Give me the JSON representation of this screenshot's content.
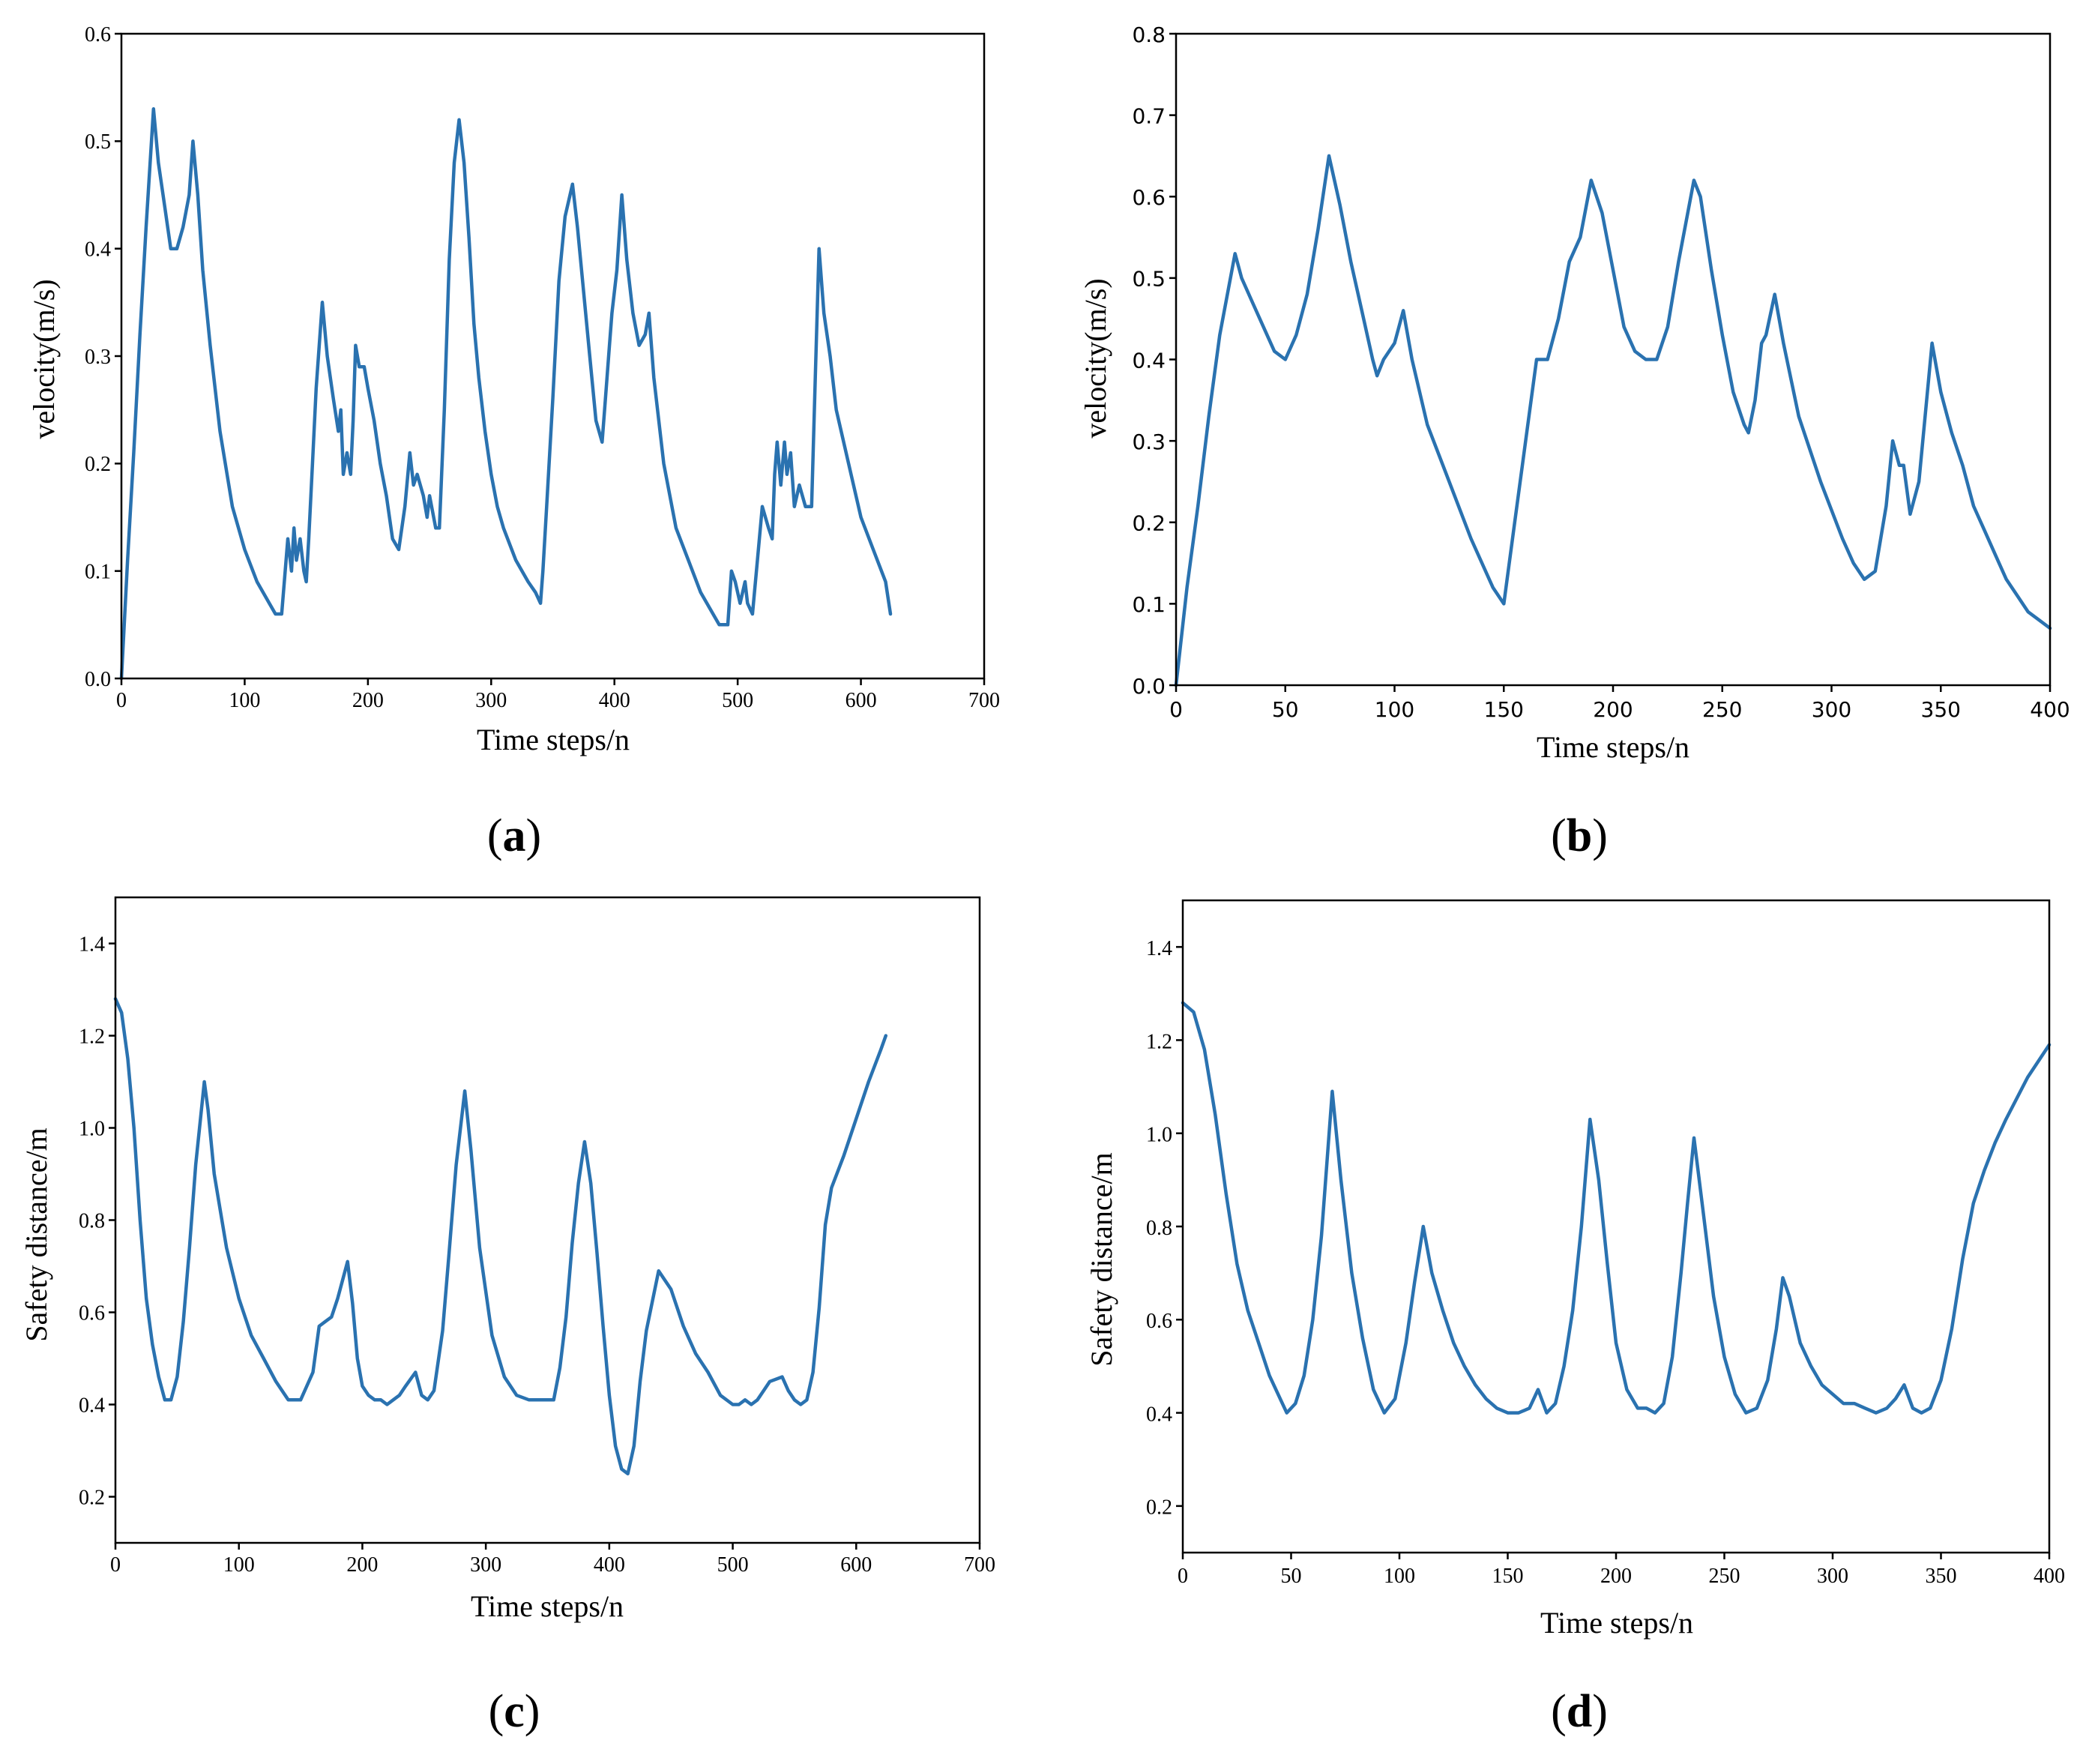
{
  "figure": {
    "series_color": "#2a72b0"
  },
  "chart_data": [
    {
      "id": "a",
      "type": "line",
      "caption_letter": "a",
      "xlabel": "Time steps/n",
      "ylabel": "velocity(m/s)",
      "xlim": [
        0,
        700
      ],
      "ylim": [
        0.0,
        0.6
      ],
      "xticks": [
        0,
        100,
        200,
        300,
        400,
        500,
        600,
        700
      ],
      "yticks": [
        0.0,
        0.1,
        0.2,
        0.3,
        0.4,
        0.5,
        0.6
      ],
      "xtick_labels": [
        "0",
        "100",
        "200",
        "300",
        "400",
        "500",
        "600",
        "700"
      ],
      "ytick_labels": [
        "0.0",
        "0.1",
        "0.2",
        "0.3",
        "0.4",
        "0.5",
        "0.6"
      ],
      "series": [
        {
          "name": "velocity",
          "x": [
            0,
            5,
            10,
            15,
            20,
            26,
            30,
            35,
            40,
            45,
            50,
            55,
            58,
            62,
            66,
            72,
            80,
            90,
            100,
            110,
            120,
            125,
            130,
            135,
            138,
            140,
            142,
            145,
            148,
            150,
            152,
            155,
            158,
            163,
            167,
            172,
            176,
            178,
            180,
            183,
            186,
            188,
            190,
            193,
            197,
            200,
            205,
            210,
            215,
            220,
            225,
            230,
            234,
            237,
            240,
            245,
            248,
            250,
            255,
            258,
            262,
            266,
            270,
            274,
            278,
            282,
            286,
            290,
            295,
            300,
            305,
            310,
            320,
            330,
            336,
            340,
            342,
            345,
            350,
            355,
            360,
            366,
            370,
            375,
            380,
            385,
            390,
            392,
            396,
            398,
            402,
            406,
            410,
            415,
            420,
            425,
            428,
            432,
            440,
            450,
            460,
            470,
            480,
            485,
            490,
            492,
            495,
            498,
            502,
            506,
            508,
            512,
            516,
            520,
            525,
            528,
            530,
            532,
            535,
            538,
            540,
            543,
            546,
            550,
            555,
            560,
            563,
            566,
            570,
            575,
            580,
            590,
            600,
            610,
            620,
            624
          ],
          "y": [
            0.0,
            0.11,
            0.21,
            0.32,
            0.42,
            0.53,
            0.48,
            0.44,
            0.4,
            0.4,
            0.42,
            0.45,
            0.5,
            0.45,
            0.38,
            0.31,
            0.23,
            0.16,
            0.12,
            0.09,
            0.07,
            0.06,
            0.06,
            0.13,
            0.1,
            0.14,
            0.11,
            0.13,
            0.1,
            0.09,
            0.13,
            0.2,
            0.27,
            0.35,
            0.3,
            0.26,
            0.23,
            0.25,
            0.19,
            0.21,
            0.19,
            0.24,
            0.31,
            0.29,
            0.29,
            0.27,
            0.24,
            0.2,
            0.17,
            0.13,
            0.12,
            0.16,
            0.21,
            0.18,
            0.19,
            0.17,
            0.15,
            0.17,
            0.14,
            0.14,
            0.25,
            0.39,
            0.48,
            0.52,
            0.48,
            0.41,
            0.33,
            0.28,
            0.23,
            0.19,
            0.16,
            0.14,
            0.11,
            0.09,
            0.08,
            0.07,
            0.1,
            0.16,
            0.26,
            0.37,
            0.43,
            0.46,
            0.42,
            0.36,
            0.3,
            0.24,
            0.22,
            0.25,
            0.31,
            0.34,
            0.38,
            0.45,
            0.39,
            0.34,
            0.31,
            0.32,
            0.34,
            0.28,
            0.2,
            0.14,
            0.11,
            0.08,
            0.06,
            0.05,
            0.05,
            0.05,
            0.1,
            0.09,
            0.07,
            0.09,
            0.07,
            0.06,
            0.11,
            0.16,
            0.14,
            0.13,
            0.19,
            0.22,
            0.18,
            0.22,
            0.19,
            0.21,
            0.16,
            0.18,
            0.16,
            0.16,
            0.28,
            0.4,
            0.34,
            0.3,
            0.25,
            0.2,
            0.15,
            0.12,
            0.09,
            0.06
          ]
        }
      ]
    },
    {
      "id": "b",
      "type": "line",
      "caption_letter": "b",
      "xlabel": "Time steps/n",
      "ylabel": "velocity(m/s)",
      "xlim": [
        0,
        400
      ],
      "ylim": [
        0.0,
        0.8
      ],
      "xticks": [
        0,
        50,
        100,
        150,
        200,
        250,
        300,
        350,
        400
      ],
      "yticks": [
        0.0,
        0.1,
        0.2,
        0.3,
        0.4,
        0.5,
        0.6,
        0.7,
        0.8
      ],
      "xtick_labels": [
        "0",
        "50",
        "100",
        "150",
        "200",
        "250",
        "300",
        "350",
        "400"
      ],
      "ytick_labels": [
        "0.0",
        "0.1",
        "0.2",
        "0.3",
        "0.4",
        "0.5",
        "0.6",
        "0.7",
        "0.8"
      ],
      "series": [
        {
          "name": "velocity",
          "x": [
            0,
            5,
            10,
            15,
            20,
            27,
            30,
            35,
            40,
            45,
            50,
            55,
            60,
            65,
            70,
            75,
            80,
            85,
            90,
            92,
            95,
            100,
            104,
            108,
            115,
            125,
            135,
            145,
            150,
            155,
            160,
            165,
            170,
            175,
            180,
            185,
            190,
            195,
            200,
            205,
            210,
            215,
            220,
            225,
            230,
            237,
            240,
            245,
            250,
            255,
            260,
            262,
            265,
            268,
            270,
            274,
            278,
            285,
            295,
            305,
            310,
            315,
            320,
            325,
            328,
            331,
            333,
            336,
            340,
            346,
            350,
            355,
            360,
            365,
            370,
            375,
            380,
            385,
            390,
            395,
            400
          ],
          "y": [
            0.0,
            0.12,
            0.22,
            0.33,
            0.43,
            0.53,
            0.5,
            0.47,
            0.44,
            0.41,
            0.4,
            0.43,
            0.48,
            0.56,
            0.65,
            0.59,
            0.52,
            0.46,
            0.4,
            0.38,
            0.4,
            0.42,
            0.46,
            0.4,
            0.32,
            0.25,
            0.18,
            0.12,
            0.1,
            0.2,
            0.3,
            0.4,
            0.4,
            0.45,
            0.52,
            0.55,
            0.62,
            0.58,
            0.51,
            0.44,
            0.41,
            0.4,
            0.4,
            0.44,
            0.52,
            0.62,
            0.6,
            0.51,
            0.43,
            0.36,
            0.32,
            0.31,
            0.35,
            0.42,
            0.43,
            0.48,
            0.42,
            0.33,
            0.25,
            0.18,
            0.15,
            0.13,
            0.14,
            0.22,
            0.3,
            0.27,
            0.27,
            0.21,
            0.25,
            0.42,
            0.36,
            0.31,
            0.27,
            0.22,
            0.19,
            0.16,
            0.13,
            0.11,
            0.09,
            0.08,
            0.07
          ]
        }
      ]
    },
    {
      "id": "c",
      "type": "line",
      "caption_letter": "c",
      "xlabel": "Time steps/n",
      "ylabel": "Safety distance/m",
      "xlim": [
        0,
        700
      ],
      "ylim": [
        0.1,
        1.5
      ],
      "xticks": [
        0,
        100,
        200,
        300,
        400,
        500,
        600,
        700
      ],
      "yticks": [
        0.2,
        0.4,
        0.6,
        0.8,
        1.0,
        1.2,
        1.4
      ],
      "xtick_labels": [
        "0",
        "100",
        "200",
        "300",
        "400",
        "500",
        "600",
        "700"
      ],
      "ytick_labels": [
        "0.2",
        "0.4",
        "0.6",
        "0.8",
        "1.0",
        "1.2",
        "1.4"
      ],
      "series": [
        {
          "name": "safety distance",
          "x": [
            0,
            5,
            10,
            15,
            20,
            25,
            30,
            35,
            40,
            45,
            50,
            55,
            60,
            65,
            72,
            75,
            80,
            90,
            100,
            110,
            120,
            130,
            140,
            150,
            160,
            165,
            170,
            175,
            180,
            188,
            192,
            196,
            200,
            205,
            210,
            215,
            220,
            225,
            230,
            235,
            243,
            248,
            253,
            258,
            265,
            270,
            276,
            283,
            288,
            295,
            305,
            315,
            325,
            335,
            345,
            350,
            355,
            360,
            365,
            370,
            375,
            380,
            385,
            390,
            395,
            400,
            405,
            410,
            415,
            420,
            425,
            430,
            440,
            450,
            460,
            470,
            480,
            490,
            500,
            505,
            510,
            515,
            520,
            525,
            530,
            540,
            545,
            550,
            555,
            560,
            565,
            570,
            575,
            580,
            590,
            600,
            610,
            620,
            624
          ],
          "y": [
            1.28,
            1.25,
            1.15,
            1.0,
            0.8,
            0.63,
            0.53,
            0.46,
            0.41,
            0.41,
            0.46,
            0.58,
            0.74,
            0.92,
            1.1,
            1.04,
            0.9,
            0.74,
            0.63,
            0.55,
            0.5,
            0.45,
            0.41,
            0.41,
            0.47,
            0.57,
            0.58,
            0.59,
            0.63,
            0.71,
            0.62,
            0.5,
            0.44,
            0.42,
            0.41,
            0.41,
            0.4,
            0.41,
            0.42,
            0.44,
            0.47,
            0.42,
            0.41,
            0.43,
            0.56,
            0.72,
            0.92,
            1.08,
            0.95,
            0.74,
            0.55,
            0.46,
            0.42,
            0.41,
            0.41,
            0.41,
            0.41,
            0.48,
            0.59,
            0.75,
            0.88,
            0.97,
            0.88,
            0.73,
            0.57,
            0.42,
            0.31,
            0.26,
            0.25,
            0.31,
            0.45,
            0.56,
            0.69,
            0.65,
            0.57,
            0.51,
            0.47,
            0.42,
            0.4,
            0.4,
            0.41,
            0.4,
            0.41,
            0.43,
            0.45,
            0.46,
            0.43,
            0.41,
            0.4,
            0.41,
            0.47,
            0.61,
            0.79,
            0.87,
            0.94,
            1.02,
            1.1,
            1.17,
            1.2
          ]
        }
      ]
    },
    {
      "id": "d",
      "type": "line",
      "caption_letter": "d",
      "xlabel": "Time steps/n",
      "ylabel": "Safety distance/m",
      "xlim": [
        0,
        400
      ],
      "ylim": [
        0.1,
        1.5
      ],
      "xticks": [
        0,
        50,
        100,
        150,
        200,
        250,
        300,
        350,
        400
      ],
      "yticks": [
        0.2,
        0.4,
        0.6,
        0.8,
        1.0,
        1.2,
        1.4
      ],
      "xtick_labels": [
        "0",
        "50",
        "100",
        "150",
        "200",
        "250",
        "300",
        "350",
        "400"
      ],
      "ytick_labels": [
        "0.2",
        "0.4",
        "0.6",
        "0.8",
        "1.0",
        "1.2",
        "1.4"
      ],
      "series": [
        {
          "name": "safety distance",
          "x": [
            0,
            5,
            10,
            15,
            20,
            25,
            30,
            35,
            40,
            45,
            48,
            52,
            56,
            60,
            64,
            69,
            73,
            78,
            83,
            88,
            93,
            98,
            103,
            107,
            111,
            115,
            120,
            125,
            130,
            135,
            140,
            145,
            150,
            155,
            160,
            164,
            168,
            172,
            176,
            180,
            184,
            188,
            192,
            196,
            200,
            205,
            210,
            214,
            218,
            222,
            226,
            230,
            233,
            236,
            240,
            245,
            250,
            255,
            260,
            265,
            270,
            274,
            277,
            280,
            285,
            290,
            295,
            300,
            305,
            310,
            315,
            320,
            325,
            329,
            333,
            337,
            341,
            345,
            350,
            355,
            360,
            365,
            370,
            375,
            380,
            390,
            400
          ],
          "y": [
            1.28,
            1.26,
            1.18,
            1.04,
            0.87,
            0.72,
            0.62,
            0.55,
            0.48,
            0.43,
            0.4,
            0.42,
            0.48,
            0.6,
            0.78,
            1.09,
            0.9,
            0.7,
            0.56,
            0.45,
            0.4,
            0.43,
            0.55,
            0.68,
            0.8,
            0.7,
            0.62,
            0.55,
            0.5,
            0.46,
            0.43,
            0.41,
            0.4,
            0.4,
            0.41,
            0.45,
            0.4,
            0.42,
            0.5,
            0.62,
            0.8,
            1.03,
            0.9,
            0.72,
            0.55,
            0.45,
            0.41,
            0.41,
            0.4,
            0.42,
            0.52,
            0.7,
            0.85,
            0.99,
            0.84,
            0.65,
            0.52,
            0.44,
            0.4,
            0.41,
            0.47,
            0.58,
            0.69,
            0.65,
            0.55,
            0.5,
            0.46,
            0.44,
            0.42,
            0.42,
            0.41,
            0.4,
            0.41,
            0.43,
            0.46,
            0.41,
            0.4,
            0.41,
            0.47,
            0.58,
            0.73,
            0.85,
            0.92,
            0.98,
            1.03,
            1.12,
            1.19
          ]
        }
      ]
    }
  ]
}
